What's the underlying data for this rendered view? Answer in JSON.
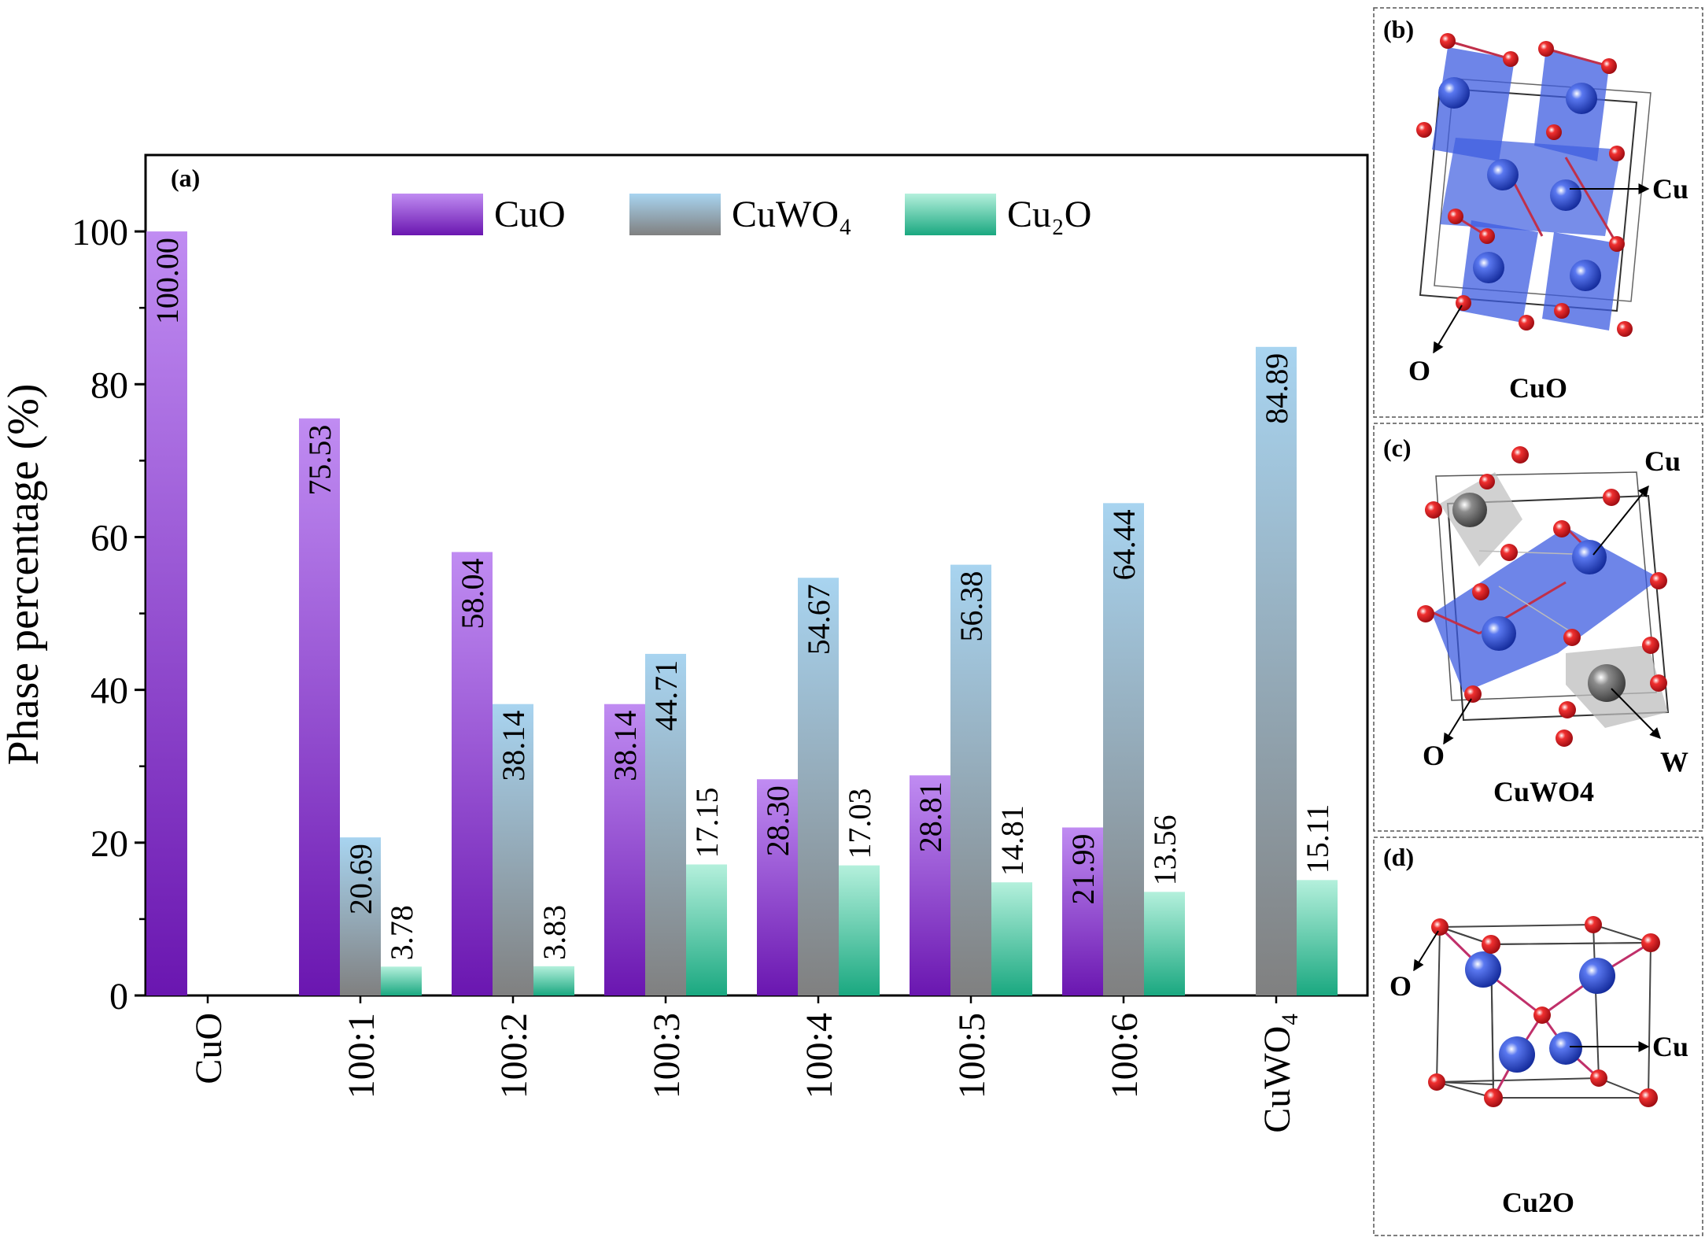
{
  "chart_data": {
    "type": "bar",
    "panel_label": "(a)",
    "ylabel": "Phase percentage (%)",
    "xlabel": "",
    "ylim": [
      0,
      110
    ],
    "yticks": [
      0,
      20,
      40,
      60,
      80,
      100
    ],
    "ytick_labels": [
      "0",
      "20",
      "40",
      "60",
      "80",
      "100"
    ],
    "categories": [
      "CuO",
      "100:1",
      "100:2",
      "100:3",
      "100:4",
      "100:5",
      "100:6",
      "CuWO₄"
    ],
    "legend_position": "top-center",
    "series": [
      {
        "name": "CuO",
        "color_top": "#c08cf2",
        "color_bottom": "#6a16b0",
        "values": [
          100.0,
          75.53,
          58.04,
          38.14,
          28.3,
          28.81,
          21.99,
          null
        ],
        "labels": [
          "100.00",
          "75.53",
          "58.04",
          "38.14",
          "28.30",
          "28.81",
          "21.99",
          ""
        ]
      },
      {
        "name": "CuWO₄",
        "color_top": "#a8d4f0",
        "color_bottom": "#808080",
        "values": [
          null,
          20.69,
          38.14,
          44.71,
          54.67,
          56.38,
          64.44,
          84.89
        ],
        "labels": [
          "",
          "20.69",
          "38.14",
          "44.71",
          "54.67",
          "56.38",
          "64.44",
          "84.89"
        ]
      },
      {
        "name": "Cu₂O",
        "color_top": "#b4f0dc",
        "color_bottom": "#1aa880",
        "values": [
          null,
          3.78,
          3.83,
          17.15,
          17.03,
          14.81,
          13.56,
          15.11
        ],
        "labels": [
          "",
          "3.78",
          "3.83",
          "17.15",
          "17.03",
          "14.81",
          "13.56",
          "15.11"
        ]
      }
    ]
  },
  "panels": [
    {
      "label": "(b)",
      "caption": "CuO",
      "annotations": [
        "Cu",
        "O"
      ]
    },
    {
      "label": "(c)",
      "caption": "CuWO4",
      "annotations": [
        "Cu",
        "O",
        "W"
      ]
    },
    {
      "label": "(d)",
      "caption": "Cu2O",
      "annotations": [
        "O",
        "Cu"
      ]
    }
  ],
  "colors": {
    "cu_atom": "#2b46c8",
    "o_atom": "#d8141e",
    "w_atom": "#6b6b6b",
    "polyhedron": "#3d5ce0"
  }
}
